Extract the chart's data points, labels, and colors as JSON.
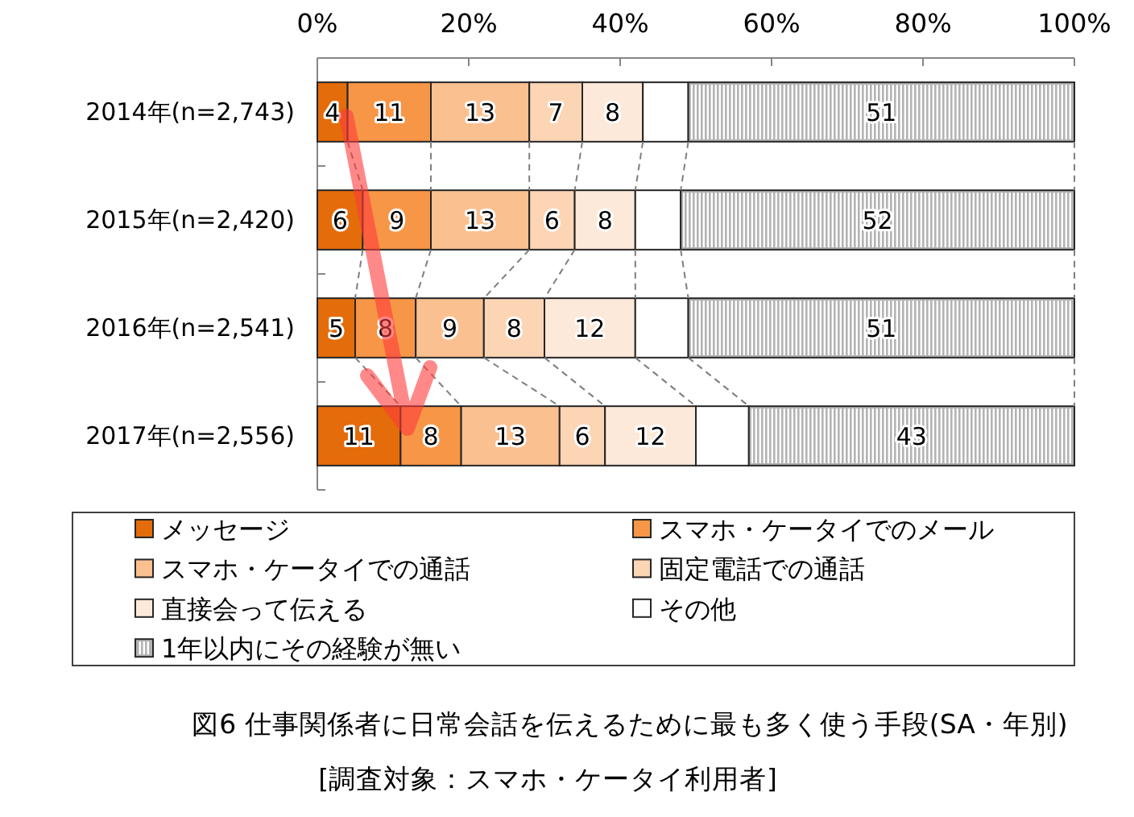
{
  "chart_data": {
    "type": "bar",
    "orientation": "horizontal",
    "stacked": true,
    "title": "図6 仕事関係者に日常会話を伝えるために最も多く使う手段(SA・年別)",
    "subtitle": "[調査対象：スマホ・ケータイ利用者]",
    "categories": [
      "2014年(n=2,743)",
      "2015年(n=2,420)",
      "2016年(n=2,541)",
      "2017年(n=2,556)"
    ],
    "xlim": [
      0,
      100
    ],
    "xticks": [
      {
        "value": 0,
        "label": "0%"
      },
      {
        "value": 20,
        "label": "20%"
      },
      {
        "value": 40,
        "label": "40%"
      },
      {
        "value": 60,
        "label": "60%"
      },
      {
        "value": 80,
        "label": "80%"
      },
      {
        "value": 100,
        "label": "100%"
      }
    ],
    "legend": "bottom",
    "series": [
      {
        "name": "メッセージ",
        "color": "#e46c0a",
        "values": [
          4,
          6,
          5,
          11
        ],
        "value_labels": [
          "4",
          "6",
          "5",
          "11"
        ]
      },
      {
        "name": "スマホ・ケータイでのメール",
        "color": "#f79646",
        "values": [
          11,
          9,
          8,
          8
        ],
        "value_labels": [
          "11",
          "9",
          "8",
          "8"
        ]
      },
      {
        "name": "スマホ・ケータイでの通話",
        "color": "#fac090",
        "values": [
          13,
          13,
          9,
          13
        ],
        "value_labels": [
          "13",
          "13",
          "9",
          "13"
        ]
      },
      {
        "name": "固定電話での通話",
        "color": "#fcd5b5",
        "values": [
          7,
          6,
          8,
          6
        ],
        "value_labels": [
          "7",
          "6",
          "8",
          "6"
        ]
      },
      {
        "name": "直接会って伝える",
        "color": "#fde9d9",
        "values": [
          8,
          8,
          12,
          12
        ],
        "value_labels": [
          "8",
          "8",
          "12",
          "12"
        ]
      },
      {
        "name": "その他",
        "color": "#ffffff",
        "values": [
          6,
          6,
          7,
          7
        ],
        "value_labels": [
          null,
          null,
          null,
          null
        ]
      },
      {
        "name": "1年以内にその経験が無い",
        "color": "#b3b3b3",
        "values": [
          51,
          52,
          51,
          43
        ],
        "value_labels": [
          "51",
          "52",
          "51",
          "43"
        ]
      }
    ]
  }
}
